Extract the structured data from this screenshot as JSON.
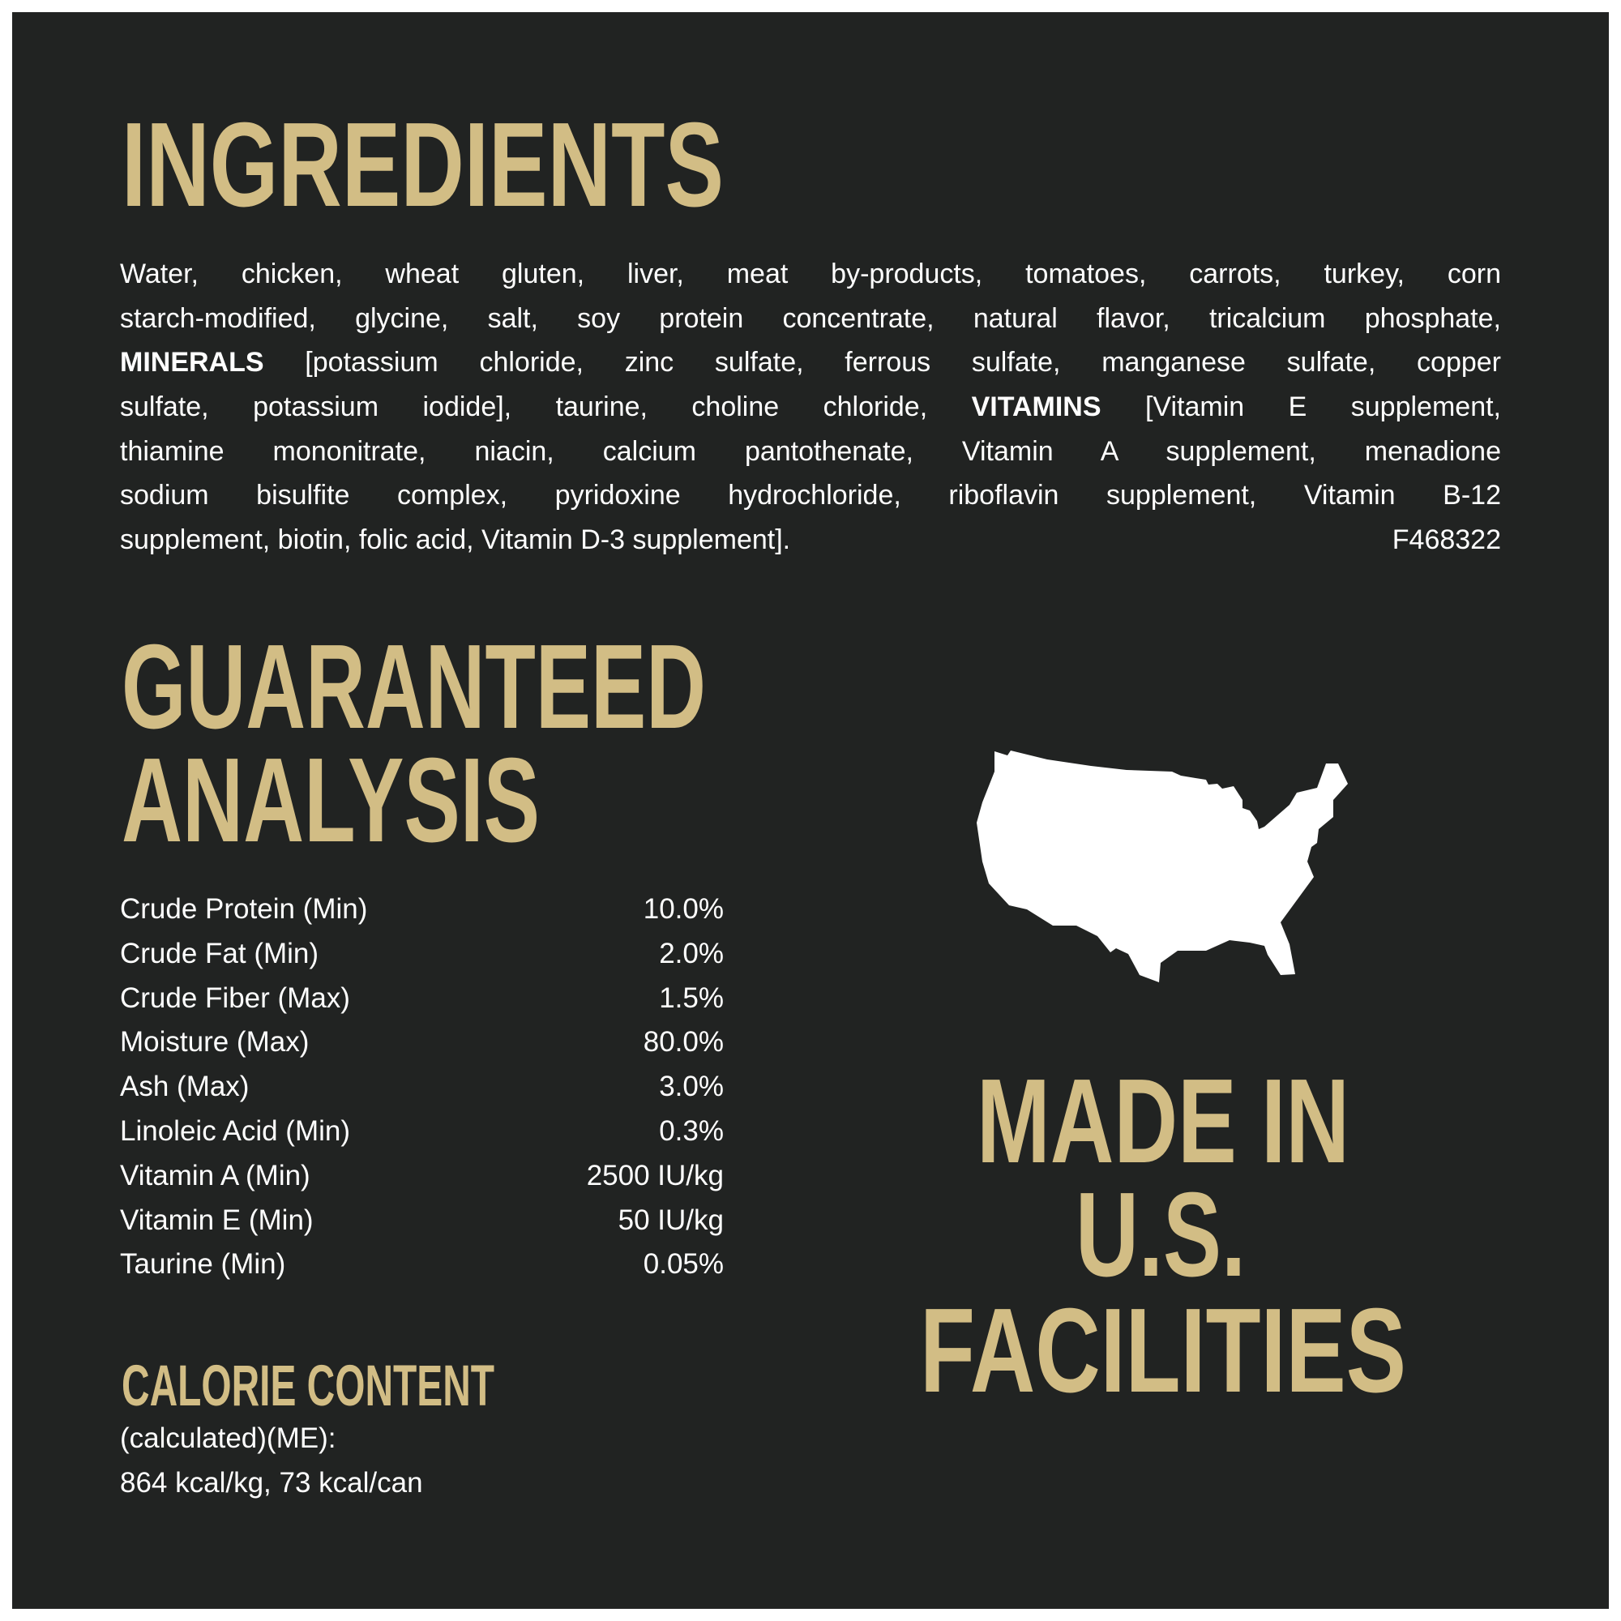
{
  "colors": {
    "background": "#212322",
    "accent": "#d2bd85",
    "text": "#ffffff"
  },
  "ingredients": {
    "title": "INGREDIENTS",
    "lines": [
      [
        {
          "t": "Water, chicken, wheat gluten, liver, meat by-products, tomatoes, carrots, turkey, corn"
        }
      ],
      [
        {
          "t": "starch-modified, glycine, salt, soy protein concentrate, natural flavor, tricalcium phosphate,"
        }
      ],
      [
        {
          "t": "MINERALS",
          "b": true
        },
        {
          "t": " [potassium chloride, zinc sulfate, ferrous sulfate, manganese sulfate, copper"
        }
      ],
      [
        {
          "t": "sulfate, potassium iodide], taurine, choline chloride, "
        },
        {
          "t": "VITAMINS",
          "b": true
        },
        {
          "t": " [Vitamin E supplement,"
        }
      ],
      [
        {
          "t": "thiamine mononitrate, niacin, calcium pantothenate, Vitamin A supplement, menadione"
        }
      ],
      [
        {
          "t": "sodium bisulfite complex, pyridoxine hydrochloride, riboflavin supplement, Vitamin B-12"
        }
      ]
    ],
    "last_line": "supplement, biotin, folic acid, Vitamin D-3 supplement].",
    "code": "F468322"
  },
  "analysis": {
    "title_line1": "GUARANTEED",
    "title_line2": "ANALYSIS",
    "rows": [
      {
        "label": "Crude Protein (Min)",
        "value": "10.0%"
      },
      {
        "label": "Crude Fat (Min)",
        "value": "2.0%"
      },
      {
        "label": "Crude Fiber (Max)",
        "value": "1.5%"
      },
      {
        "label": "Moisture (Max)",
        "value": "80.0%"
      },
      {
        "label": "Ash (Max)",
        "value": "3.0%"
      },
      {
        "label": "Linoleic Acid (Min)",
        "value": "0.3%"
      },
      {
        "label": "Vitamin A (Min)",
        "value": "2500 IU/kg"
      },
      {
        "label": "Vitamin E (Min)",
        "value": "50 IU/kg"
      },
      {
        "label": "Taurine (Min)",
        "value": "0.05%"
      }
    ]
  },
  "calorie": {
    "title": "CALORIE CONTENT",
    "method": "(calculated)(ME):",
    "value": "864 kcal/kg, 73 kcal/can"
  },
  "origin": {
    "icon": "usa-map-icon",
    "line1": "MADE IN",
    "line2": "U.S.",
    "line3": "FACILITIES"
  }
}
